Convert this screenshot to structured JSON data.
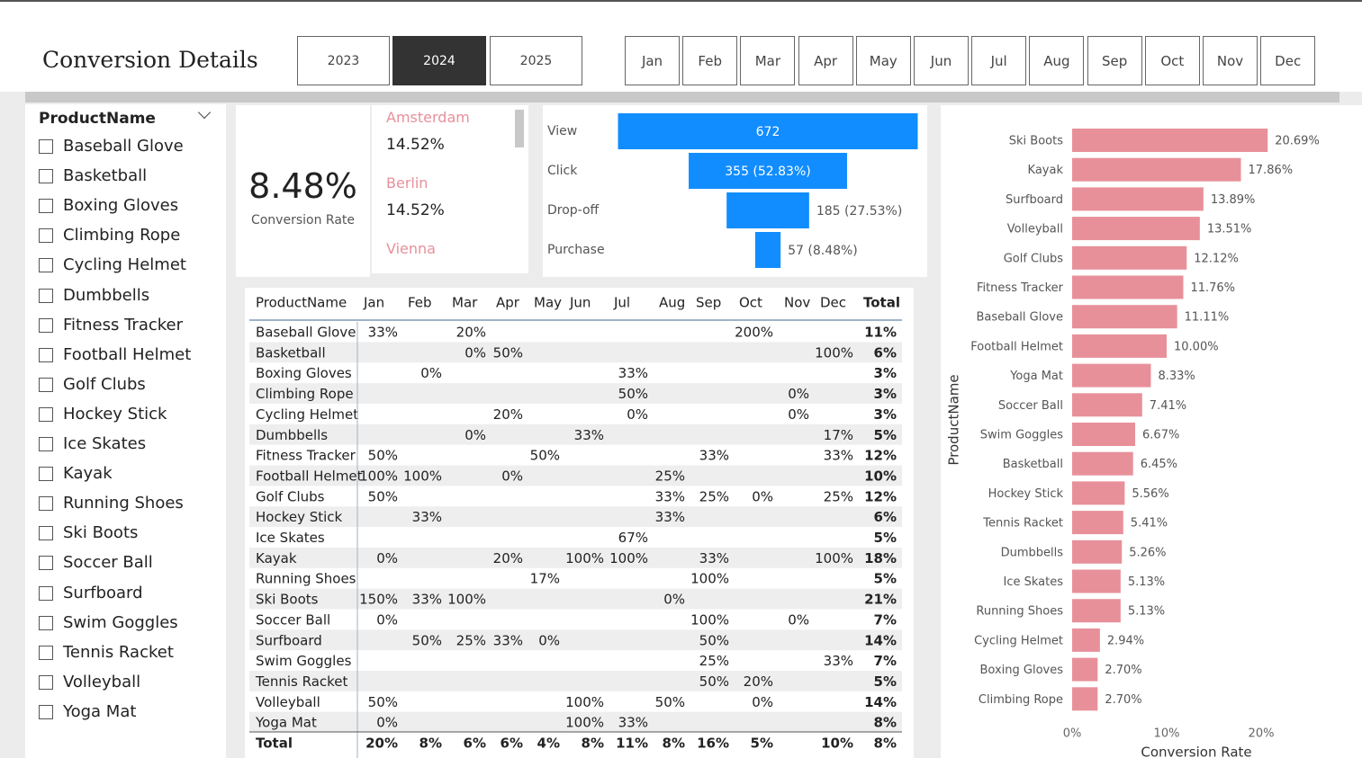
{
  "header": {
    "title": "Conversion Details"
  },
  "years": {
    "items": [
      "2023",
      "2024",
      "2025"
    ],
    "selected": "2024"
  },
  "months": [
    "Jan",
    "Feb",
    "Mar",
    "Apr",
    "May",
    "Jun",
    "Jul",
    "Aug",
    "Sep",
    "Oct",
    "Nov",
    "Dec"
  ],
  "slicer": {
    "title": "ProductName",
    "items": [
      "Baseball Glove",
      "Basketball",
      "Boxing Gloves",
      "Climbing Rope",
      "Cycling Helmet",
      "Dumbbells",
      "Fitness Tracker",
      "Football Helmet",
      "Golf Clubs",
      "Hockey Stick",
      "Ice Skates",
      "Kayak",
      "Running Shoes",
      "Ski Boots",
      "Soccer Ball",
      "Surfboard",
      "Swim Goggles",
      "Tennis Racket",
      "Volleyball",
      "Yoga Mat"
    ]
  },
  "kpi": {
    "value": "8.48%",
    "label": "Conversion Rate"
  },
  "cities": [
    {
      "name": "Amsterdam",
      "value": "14.52%"
    },
    {
      "name": "Berlin",
      "value": "14.52%"
    },
    {
      "name": "Vienna"
    }
  ],
  "matrix": {
    "header": [
      "ProductName",
      "Jan",
      "Feb",
      "Mar",
      "Apr",
      "May",
      "Jun",
      "Jul",
      "Aug",
      "Sep",
      "Oct",
      "Nov",
      "Dec",
      "Total"
    ],
    "rows": [
      [
        "Baseball Glove",
        "33%",
        null,
        "20%",
        null,
        null,
        null,
        null,
        null,
        null,
        "200%",
        null,
        null,
        "11%"
      ],
      [
        "Basketball",
        null,
        null,
        "0%",
        "50%",
        null,
        null,
        null,
        null,
        null,
        null,
        null,
        "100%",
        "6%"
      ],
      [
        "Boxing Gloves",
        null,
        "0%",
        null,
        null,
        null,
        null,
        "33%",
        null,
        null,
        null,
        null,
        null,
        "3%"
      ],
      [
        "Climbing Rope",
        null,
        null,
        null,
        null,
        null,
        null,
        "50%",
        null,
        null,
        null,
        "0%",
        null,
        "3%"
      ],
      [
        "Cycling Helmet",
        null,
        null,
        null,
        "20%",
        null,
        null,
        "0%",
        null,
        null,
        null,
        "0%",
        null,
        "3%"
      ],
      [
        "Dumbbells",
        null,
        null,
        "0%",
        null,
        null,
        "33%",
        null,
        null,
        null,
        null,
        null,
        "17%",
        "5%"
      ],
      [
        "Fitness Tracker",
        "50%",
        null,
        null,
        null,
        "50%",
        null,
        null,
        null,
        "33%",
        null,
        null,
        "33%",
        "12%"
      ],
      [
        "Football Helmet",
        "100%",
        "100%",
        null,
        "0%",
        null,
        null,
        null,
        "25%",
        null,
        null,
        null,
        null,
        "10%"
      ],
      [
        "Golf Clubs",
        "50%",
        null,
        null,
        null,
        null,
        null,
        null,
        "33%",
        "25%",
        "0%",
        null,
        "25%",
        "12%"
      ],
      [
        "Hockey Stick",
        null,
        "33%",
        null,
        null,
        null,
        null,
        null,
        "33%",
        null,
        null,
        null,
        null,
        "6%"
      ],
      [
        "Ice Skates",
        null,
        null,
        null,
        null,
        null,
        null,
        "67%",
        null,
        null,
        null,
        null,
        null,
        "5%"
      ],
      [
        "Kayak",
        "0%",
        null,
        null,
        "20%",
        null,
        "100%",
        "100%",
        null,
        "33%",
        null,
        null,
        "100%",
        "18%"
      ],
      [
        "Running Shoes",
        null,
        null,
        null,
        null,
        "17%",
        null,
        null,
        null,
        "100%",
        null,
        null,
        null,
        "5%"
      ],
      [
        "Ski Boots",
        "150%",
        "33%",
        "100%",
        null,
        null,
        null,
        null,
        "0%",
        null,
        null,
        null,
        null,
        "21%"
      ],
      [
        "Soccer Ball",
        "0%",
        null,
        null,
        null,
        null,
        null,
        null,
        null,
        "100%",
        null,
        "0%",
        null,
        "7%"
      ],
      [
        "Surfboard",
        null,
        "50%",
        "25%",
        "33%",
        "0%",
        null,
        null,
        null,
        "50%",
        null,
        null,
        null,
        "14%"
      ],
      [
        "Swim Goggles",
        null,
        null,
        null,
        null,
        null,
        null,
        null,
        null,
        "25%",
        null,
        null,
        "33%",
        "7%"
      ],
      [
        "Tennis Racket",
        null,
        null,
        null,
        null,
        null,
        null,
        null,
        null,
        "50%",
        "20%",
        null,
        null,
        "5%"
      ],
      [
        "Volleyball",
        "50%",
        null,
        null,
        null,
        null,
        "100%",
        null,
        "50%",
        null,
        "0%",
        null,
        null,
        "14%"
      ],
      [
        "Yoga Mat",
        "0%",
        null,
        null,
        null,
        null,
        "100%",
        "33%",
        null,
        null,
        null,
        null,
        null,
        "8%"
      ]
    ],
    "total": [
      "Total",
      "20%",
      "8%",
      "6%",
      "6%",
      "4%",
      "8%",
      "11%",
      "8%",
      "16%",
      "5%",
      null,
      "10%",
      "8%"
    ]
  },
  "chart_data": [
    {
      "type": "funnel",
      "categories": [
        "View",
        "Click",
        "Drop-off",
        "Purchase"
      ],
      "values": [
        672,
        355,
        185,
        57
      ],
      "value_labels": [
        "672",
        "355 (52.83%)",
        "185 (27.53%)",
        "57 (8.48%)"
      ],
      "color": "#118dff"
    },
    {
      "type": "hbar",
      "x_label": "Conversion Rate",
      "y_label": "ProductName",
      "categories": [
        "Ski Boots",
        "Kayak",
        "Surfboard",
        "Volleyball",
        "Golf Clubs",
        "Fitness Tracker",
        "Baseball Glove",
        "Football Helmet",
        "Yoga Mat",
        "Soccer Ball",
        "Swim Goggles",
        "Basketball",
        "Hockey Stick",
        "Tennis Racket",
        "Dumbbells",
        "Ice Skates",
        "Running Shoes",
        "Cycling Helmet",
        "Boxing Gloves",
        "Climbing Rope"
      ],
      "values": [
        20.69,
        17.86,
        13.89,
        13.51,
        12.12,
        11.76,
        11.11,
        10.0,
        8.33,
        7.41,
        6.67,
        6.45,
        5.56,
        5.41,
        5.26,
        5.13,
        5.13,
        2.94,
        2.7,
        2.7
      ],
      "value_labels": [
        "20.69%",
        "17.86%",
        "13.89%",
        "13.51%",
        "12.12%",
        "11.76%",
        "11.11%",
        "10.00%",
        "8.33%",
        "7.41%",
        "6.67%",
        "6.45%",
        "5.56%",
        "5.41%",
        "5.26%",
        "5.13%",
        "5.13%",
        "2.94%",
        "2.70%",
        "2.70%"
      ],
      "xlim": [
        0,
        22
      ],
      "xticks": [
        {
          "value": 0,
          "label": "0%"
        },
        {
          "value": 10,
          "label": "10%"
        },
        {
          "value": 20,
          "label": "20%"
        }
      ],
      "color": "#e8909a",
      "grid": false
    }
  ]
}
